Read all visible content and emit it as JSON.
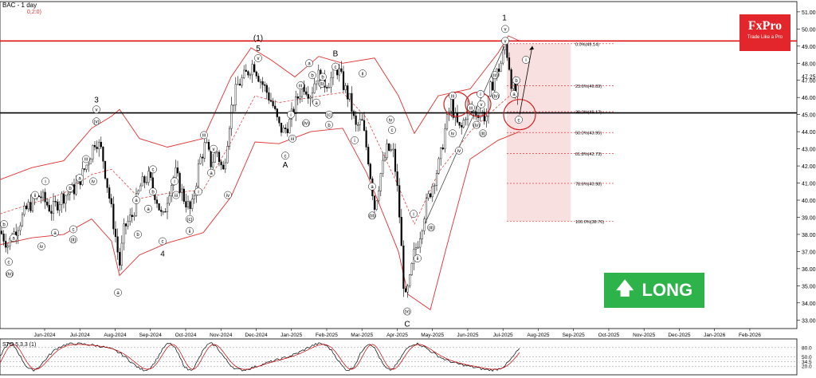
{
  "header": {
    "symbol_timeframe": "BAC - 1 day",
    "sub": "0,2:0)"
  },
  "logo": {
    "brand": "FxPro",
    "tagline": "Trade Like a Pro"
  },
  "badge": {
    "label": "LONG",
    "icon": "up-arrow-icon",
    "color": "#2db34a"
  },
  "indicator": {
    "label": "STO 5,3,3 (1)",
    "levels": [
      "80.0",
      "50.0",
      "34.5",
      "20.0"
    ]
  },
  "colors": {
    "bull": "#1a9e3a",
    "bear": "#d32020",
    "band": "#e03030",
    "resistance": "#e00000",
    "support": "#000000",
    "fib_zone": "#f6d6d6"
  },
  "chart_data": {
    "type": "candlestick",
    "title": "BAC - 1 day",
    "ylim": [
      32.5,
      51.6
    ],
    "y_ticks": [
      33,
      34,
      35,
      36,
      37,
      38,
      39,
      40,
      41,
      42,
      43,
      44,
      45,
      46,
      47,
      48,
      49,
      50,
      51
    ],
    "y_tick_labels": [
      "33.00",
      "34.00",
      "35.00",
      "36.00",
      "37.00",
      "38.00",
      "39.00",
      "40.00",
      "41.00",
      "42.00",
      "43.00",
      "44.00",
      "45.00",
      "46.00",
      "47.00",
      "48.00",
      "49.00",
      "50.00",
      "51.00"
    ],
    "price_label": "47.25",
    "x_labels": [
      "Jun-2024",
      "Jul-2024",
      "Aug-2024",
      "Sep-2024",
      "Oct-2024",
      "Nov-2024",
      "Dec-2024",
      "Jan-2025",
      "Feb-2025",
      "Mar-2025",
      "Apr-2025",
      "May-2025",
      "Jun-2025",
      "Jul-2025",
      "Aug-2025",
      "Sep-2025",
      "Oct-2025",
      "Nov-2025",
      "Dec-2025",
      "Jan-2026",
      "Feb-2026"
    ],
    "price_path": [
      [
        0,
        38.2
      ],
      [
        10,
        37.4
      ],
      [
        22,
        38.5
      ],
      [
        35,
        39.6
      ],
      [
        50,
        40.3
      ],
      [
        65,
        39.4
      ],
      [
        78,
        40.2
      ],
      [
        92,
        40.6
      ],
      [
        100,
        41.2
      ],
      [
        110,
        42.2
      ],
      [
        120,
        43.6
      ],
      [
        128,
        42.8
      ],
      [
        136,
        40.5
      ],
      [
        144,
        38.2
      ],
      [
        150,
        36.2
      ],
      [
        156,
        38.4
      ],
      [
        166,
        39.1
      ],
      [
        176,
        40.8
      ],
      [
        186,
        41.4
      ],
      [
        196,
        40.2
      ],
      [
        204,
        38.8
      ],
      [
        212,
        40.6
      ],
      [
        220,
        41.6
      ],
      [
        230,
        40.2
      ],
      [
        240,
        39.3
      ],
      [
        250,
        42.2
      ],
      [
        258,
        43.3
      ],
      [
        265,
        42.1
      ],
      [
        272,
        42.9
      ],
      [
        280,
        41.6
      ],
      [
        290,
        45.3
      ],
      [
        298,
        46.7
      ],
      [
        308,
        47.3
      ],
      [
        318,
        48.0
      ],
      [
        326,
        47.1
      ],
      [
        334,
        46.4
      ],
      [
        342,
        45.6
      ],
      [
        350,
        44.3
      ],
      [
        356,
        44.0
      ],
      [
        364,
        44.6
      ],
      [
        372,
        45.8
      ],
      [
        380,
        46.8
      ],
      [
        390,
        46.2
      ],
      [
        398,
        47.4
      ],
      [
        406,
        46.8
      ],
      [
        414,
        47.0
      ],
      [
        424,
        47.7
      ],
      [
        432,
        46.6
      ],
      [
        440,
        45.7
      ],
      [
        446,
        44.2
      ],
      [
        454,
        44.6
      ],
      [
        462,
        42.5
      ],
      [
        470,
        39.6
      ],
      [
        478,
        41.6
      ],
      [
        486,
        43.0
      ],
      [
        494,
        42.7
      ],
      [
        500,
        40.0
      ],
      [
        508,
        34.0
      ],
      [
        514,
        35.2
      ],
      [
        520,
        37.0
      ],
      [
        526,
        37.8
      ],
      [
        534,
        39.6
      ],
      [
        544,
        41.1
      ],
      [
        552,
        42.3
      ],
      [
        558,
        44.0
      ],
      [
        566,
        45.7
      ],
      [
        572,
        44.6
      ],
      [
        578,
        44.0
      ],
      [
        586,
        45.3
      ],
      [
        594,
        45.1
      ],
      [
        602,
        45.2
      ],
      [
        610,
        44.8
      ],
      [
        616,
        46.6
      ],
      [
        622,
        47.3
      ],
      [
        628,
        47.9
      ],
      [
        634,
        49.1
      ],
      [
        638,
        48.2
      ],
      [
        642,
        46.8
      ],
      [
        648,
        45.9
      ],
      [
        652,
        47.0
      ]
    ],
    "bollinger": {
      "upper": [
        [
          0,
          41.2
        ],
        [
          40,
          41.9
        ],
        [
          80,
          42.3
        ],
        [
          115,
          44.2
        ],
        [
          140,
          44.9
        ],
        [
          150,
          45.3
        ],
        [
          175,
          43.6
        ],
        [
          210,
          43.1
        ],
        [
          255,
          43.6
        ],
        [
          290,
          47.2
        ],
        [
          315,
          48.9
        ],
        [
          340,
          48.2
        ],
        [
          370,
          47.2
        ],
        [
          400,
          48.4
        ],
        [
          430,
          48.0
        ],
        [
          470,
          48.3
        ],
        [
          500,
          46.1
        ],
        [
          520,
          43.9
        ],
        [
          550,
          46.1
        ],
        [
          590,
          46.5
        ],
        [
          625,
          48.6
        ],
        [
          638,
          49.6
        ],
        [
          652,
          49.3
        ]
      ],
      "mid": [
        [
          0,
          39.2
        ],
        [
          40,
          39.8
        ],
        [
          80,
          40.4
        ],
        [
          115,
          41.5
        ],
        [
          140,
          41.8
        ],
        [
          175,
          40.1
        ],
        [
          210,
          40.4
        ],
        [
          255,
          40.6
        ],
        [
          290,
          43.4
        ],
        [
          320,
          46.1
        ],
        [
          350,
          45.7
        ],
        [
          390,
          46.0
        ],
        [
          430,
          46.3
        ],
        [
          460,
          44.8
        ],
        [
          500,
          40.8
        ],
        [
          520,
          38.6
        ],
        [
          550,
          41.6
        ],
        [
          590,
          44.0
        ],
        [
          625,
          45.5
        ],
        [
          652,
          46.6
        ]
      ],
      "lower": [
        [
          0,
          37.4
        ],
        [
          40,
          37.8
        ],
        [
          80,
          38.0
        ],
        [
          115,
          38.9
        ],
        [
          140,
          37.6
        ],
        [
          150,
          35.6
        ],
        [
          175,
          36.8
        ],
        [
          210,
          37.5
        ],
        [
          255,
          38.1
        ],
        [
          290,
          40.2
        ],
        [
          320,
          43.4
        ],
        [
          350,
          43.3
        ],
        [
          390,
          44.0
        ],
        [
          430,
          44.2
        ],
        [
          460,
          41.6
        ],
        [
          500,
          37.0
        ],
        [
          512,
          34.5
        ],
        [
          540,
          33.6
        ],
        [
          560,
          37.2
        ],
        [
          590,
          42.4
        ],
        [
          625,
          43.5
        ],
        [
          652,
          44.0
        ]
      ]
    },
    "levels": [
      {
        "price": 49.3,
        "role": "resistance"
      },
      {
        "price": 45.1,
        "role": "support"
      }
    ],
    "fibonacci": [
      {
        "label": "0.0%(49.14)",
        "price": 49.14
      },
      {
        "label": "23.6%(46.69)",
        "price": 46.69
      },
      {
        "label": "38.2%(45.17)",
        "price": 45.17
      },
      {
        "label": "50.0%(43.95)",
        "price": 43.95
      },
      {
        "label": "61.8%(42.73)",
        "price": 42.73
      },
      {
        "label": "78.6%(40.98)",
        "price": 40.98
      },
      {
        "label": "100.0%(38.76)",
        "price": 38.76
      }
    ],
    "wave_labels": [
      {
        "t": "1",
        "x": 633,
        "p": 50.7,
        "plain": true
      },
      {
        "t": "v",
        "x": 634,
        "p": 50.0
      },
      {
        "t": "v",
        "x": 634,
        "p": 49.3
      },
      {
        "t": "(1)",
        "x": 324,
        "p": 49.5,
        "plain": true
      },
      {
        "t": "5",
        "x": 324,
        "p": 48.9,
        "plain": true
      },
      {
        "t": "v",
        "x": 324,
        "p": 48.3
      },
      {
        "t": "3",
        "x": 121,
        "p": 45.9,
        "plain": true
      },
      {
        "t": "v",
        "x": 121,
        "p": 45.3
      },
      {
        "t": "(v)",
        "x": 121,
        "p": 44.6
      },
      {
        "t": "4",
        "x": 204,
        "p": 36.9,
        "plain": true
      },
      {
        "t": "A",
        "x": 358,
        "p": 42.1,
        "plain": true
      },
      {
        "t": "B",
        "x": 421,
        "p": 48.6,
        "plain": true
      },
      {
        "t": "C",
        "x": 511,
        "p": 32.8,
        "plain": true
      },
      {
        "t": "i",
        "x": 57,
        "p": 41.1
      },
      {
        "t": "ii",
        "x": 44,
        "p": 40.3
      },
      {
        "t": "iii",
        "x": 108,
        "p": 42.4
      },
      {
        "t": "iv",
        "x": 117,
        "p": 41.1
      },
      {
        "t": "b",
        "x": 88,
        "p": 40.7
      },
      {
        "t": "a",
        "x": 100,
        "p": 41.3
      },
      {
        "t": "c",
        "x": 92,
        "p": 38.3
      },
      {
        "t": "(ii)",
        "x": 92,
        "p": 37.7
      },
      {
        "t": "b",
        "x": 5,
        "p": 38.6
      },
      {
        "t": "a",
        "x": 17,
        "p": 37.8
      },
      {
        "t": "c",
        "x": 11,
        "p": 36.4
      },
      {
        "t": "(iv)",
        "x": 12,
        "p": 35.7
      },
      {
        "t": "iv",
        "x": 52,
        "p": 37.3
      },
      {
        "t": "a",
        "x": 69,
        "p": 38.1
      },
      {
        "t": "a",
        "x": 148,
        "p": 34.6
      },
      {
        "t": "a",
        "x": 171,
        "p": 40.0
      },
      {
        "t": "b",
        "x": 173,
        "p": 38.0
      },
      {
        "t": "c",
        "x": 192,
        "p": 41.8
      },
      {
        "t": "b",
        "x": 192,
        "p": 40.5
      },
      {
        "t": "a",
        "x": 186,
        "p": 39.5
      },
      {
        "t": "c",
        "x": 204,
        "p": 37.6
      },
      {
        "t": "i",
        "x": 219,
        "p": 41.1
      },
      {
        "t": "iii",
        "x": 221,
        "p": 40.3
      },
      {
        "t": "(c)",
        "x": 238,
        "p": 38.9
      },
      {
        "t": "ii",
        "x": 238,
        "p": 38.2
      },
      {
        "t": "iii",
        "x": 256,
        "p": 43.8
      },
      {
        "t": "v",
        "x": 268,
        "p": 43.0
      },
      {
        "t": "a",
        "x": 265,
        "p": 41.6
      },
      {
        "t": "iv",
        "x": 286,
        "p": 40.3
      },
      {
        "t": "i",
        "x": 249,
        "p": 40.5
      },
      {
        "t": "a",
        "x": 388,
        "p": 48.0
      },
      {
        "t": "b",
        "x": 392,
        "p": 47.3
      },
      {
        "t": "iii",
        "x": 377,
        "p": 46.7
      },
      {
        "t": "a",
        "x": 397,
        "p": 45.7
      },
      {
        "t": "c",
        "x": 421,
        "p": 47.8
      },
      {
        "t": "b",
        "x": 405,
        "p": 47.2
      },
      {
        "t": "(b)",
        "x": 404,
        "p": 46.8
      },
      {
        "t": "(c)",
        "x": 413,
        "p": 45.0
      },
      {
        "t": "b",
        "x": 413,
        "p": 44.4
      },
      {
        "t": "(iv)",
        "x": 384,
        "p": 44.5
      },
      {
        "t": "i",
        "x": 365,
        "p": 45.0
      },
      {
        "t": "iii",
        "x": 367,
        "p": 43.6
      },
      {
        "t": "c",
        "x": 358,
        "p": 42.6
      },
      {
        "t": "ii",
        "x": 455,
        "p": 47.4
      },
      {
        "t": "i",
        "x": 445,
        "p": 43.5
      },
      {
        "t": "iv",
        "x": 490,
        "p": 44.7
      },
      {
        "t": "c",
        "x": 492,
        "p": 44.1
      },
      {
        "t": "a",
        "x": 467,
        "p": 40.8
      },
      {
        "t": "(iii)",
        "x": 467,
        "p": 39.1
      },
      {
        "t": "(v)",
        "x": 511,
        "p": 33.5
      },
      {
        "t": "i",
        "x": 519,
        "p": 39.2
      },
      {
        "t": "ii",
        "x": 524,
        "p": 36.6
      },
      {
        "t": "(ii)",
        "x": 541,
        "p": 38.4
      },
      {
        "t": "iii",
        "x": 568,
        "p": 46.1
      },
      {
        "t": "iv",
        "x": 568,
        "p": 43.9
      },
      {
        "t": "iv",
        "x": 576,
        "p": 42.9
      },
      {
        "t": "(iv)",
        "x": 598,
        "p": 44.4
      },
      {
        "t": "i",
        "x": 603,
        "p": 46.2
      },
      {
        "t": "v",
        "x": 604,
        "p": 45.6
      },
      {
        "t": "(iii)",
        "x": 621,
        "p": 47.3
      },
      {
        "t": "iii",
        "x": 591,
        "p": 45.4
      },
      {
        "t": "(ii)",
        "x": 606,
        "p": 43.9
      },
      {
        "t": "(iv)",
        "x": 622,
        "p": 46.1
      },
      {
        "t": "b",
        "x": 648,
        "p": 47.0
      },
      {
        "t": "a",
        "x": 645,
        "p": 46.2
      },
      {
        "t": "c",
        "x": 651,
        "p": 44.7
      },
      {
        "t": "i",
        "x": 660,
        "p": 48.2
      }
    ],
    "stochastic": {
      "levels": [
        80,
        50,
        34.5,
        20
      ]
    }
  }
}
